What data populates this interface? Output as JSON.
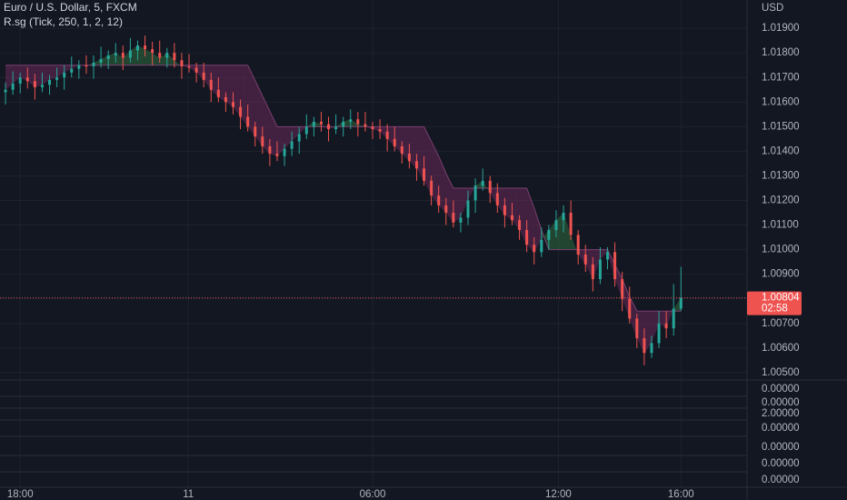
{
  "chart_data": {
    "type": "candlestick",
    "title": "Euro / U.S. Dollar, 5, FXCM",
    "indicator": "R.sg (Tick, 250, 1, 2, 12)",
    "currency": "USD",
    "countdown": "02:58",
    "last_price": {
      "value": 1.00804,
      "label": "1.00804"
    },
    "up_color": "#26a69a",
    "down_color": "#ef5350",
    "grid": true,
    "xlim": [
      -2.75,
      99
    ],
    "xticks": [
      {
        "value": 0,
        "label": "18:00"
      },
      {
        "value": 22.9,
        "label": "11"
      },
      {
        "value": 48,
        "label": "06:00"
      },
      {
        "value": 73.3,
        "label": "12:00"
      },
      {
        "value": 90,
        "label": "16:00"
      }
    ],
    "ylim": [
      1.0047,
      1.02015
    ],
    "yticks": [
      {
        "value": 1.005,
        "label": "1.00500"
      },
      {
        "value": 1.006,
        "label": "1.00600"
      },
      {
        "value": 1.007,
        "label": "1.00700"
      },
      {
        "value": 1.008,
        "label": "1.00800"
      },
      {
        "value": 1.009,
        "label": "1.00900"
      },
      {
        "value": 1.01,
        "label": "1.01000"
      },
      {
        "value": 1.011,
        "label": "1.01100"
      },
      {
        "value": 1.012,
        "label": "1.01200"
      },
      {
        "value": 1.013,
        "label": "1.01300"
      },
      {
        "value": 1.014,
        "label": "1.01400"
      },
      {
        "value": 1.015,
        "label": "1.01500"
      },
      {
        "value": 1.016,
        "label": "1.01600"
      },
      {
        "value": 1.017,
        "label": "1.01700"
      },
      {
        "value": 1.018,
        "label": "1.01800"
      },
      {
        "value": 1.019,
        "label": "1.01900"
      }
    ],
    "subpane_labels": [
      "0.00000",
      "0.00000",
      "2.00000",
      "0.00000",
      "0.00000",
      "0.00000",
      "0.00000"
    ],
    "x": [
      -2,
      -1,
      0,
      1,
      2,
      3,
      4,
      5,
      6,
      7,
      8,
      9,
      10,
      11,
      12,
      13,
      14,
      15,
      16,
      17,
      18,
      19,
      20,
      21,
      22,
      23,
      24,
      25,
      26,
      27,
      28,
      29,
      30,
      31,
      32,
      33,
      34,
      35,
      36,
      37,
      38,
      39,
      40,
      41,
      42,
      43,
      44,
      45,
      46,
      47,
      48,
      49,
      50,
      51,
      52,
      53,
      54,
      55,
      56,
      57,
      58,
      59,
      60,
      61,
      62,
      63,
      64,
      65,
      66,
      67,
      68,
      69,
      70,
      71,
      72,
      73,
      74,
      75,
      76,
      77,
      78,
      79,
      80,
      81,
      82,
      83,
      84,
      85,
      86,
      87,
      88,
      89,
      90
    ],
    "open": [
      1.0164,
      1.0165,
      1.01675,
      1.017,
      1.01685,
      1.0166,
      1.0167,
      1.0169,
      1.017,
      1.0172,
      1.01735,
      1.0175,
      1.01745,
      1.0176,
      1.01775,
      1.0179,
      1.018,
      1.0178,
      1.0181,
      1.0183,
      1.01815,
      1.018,
      1.0178,
      1.018,
      1.0177,
      1.01745,
      1.0174,
      1.0172,
      1.0169,
      1.0165,
      1.0162,
      1.016,
      1.0158,
      1.0154,
      1.015,
      1.0146,
      1.0142,
      1.0139,
      1.0138,
      1.0141,
      1.0144,
      1.0147,
      1.015,
      1.0152,
      1.0151,
      1.0149,
      1.015,
      1.0152,
      1.0153,
      1.0151,
      1.015,
      1.0149,
      1.0148,
      1.0145,
      1.0142,
      1.0139,
      1.0136,
      1.0133,
      1.0128,
      1.0122,
      1.0118,
      1.0115,
      1.0111,
      1.0113,
      1.012,
      1.0126,
      1.0128,
      1.0123,
      1.0118,
      1.0114,
      1.0112,
      1.0108,
      1.0102,
      1.0099,
      1.0104,
      1.0108,
      1.0112,
      1.0115,
      1.0106,
      1.0098,
      1.0094,
      1.0088,
      1.0096,
      1.0099,
      1.0088,
      1.008,
      1.0072,
      1.0064,
      1.0058,
      1.0062,
      1.007,
      1.0068,
      1.0076
    ],
    "high": [
      1.0168,
      1.01725,
      1.0172,
      1.0174,
      1.01715,
      1.0172,
      1.0171,
      1.0174,
      1.0175,
      1.01785,
      1.0177,
      1.0179,
      1.0179,
      1.01825,
      1.0181,
      1.0184,
      1.0183,
      1.0186,
      1.0185,
      1.0187,
      1.01845,
      1.0185,
      1.0182,
      1.0184,
      1.018,
      1.01795,
      1.0176,
      1.0176,
      1.0172,
      1.017,
      1.0164,
      1.0164,
      1.0161,
      1.0159,
      1.0152,
      1.015,
      1.0145,
      1.0144,
      1.0143,
      1.0148,
      1.015,
      1.0155,
      1.0154,
      1.0156,
      1.0154,
      1.0155,
      1.0154,
      1.0157,
      1.0156,
      1.0156,
      1.0152,
      1.0153,
      1.0151,
      1.015,
      1.0144,
      1.0143,
      1.0139,
      1.0138,
      1.013,
      1.0126,
      1.0121,
      1.012,
      1.0115,
      1.0124,
      1.0129,
      1.0133,
      1.013,
      1.0127,
      1.0121,
      1.0119,
      1.0114,
      1.0112,
      1.0105,
      1.0109,
      1.011,
      1.0116,
      1.0118,
      1.012,
      1.0108,
      1.0102,
      1.0097,
      1.0101,
      1.0101,
      1.0103,
      1.0091,
      1.0085,
      1.0074,
      1.0068,
      1.0065,
      1.0075,
      1.0075,
      1.0086,
      1.0093
    ],
    "low": [
      1.0159,
      1.0163,
      1.01635,
      1.01655,
      1.0161,
      1.0164,
      1.0163,
      1.0166,
      1.0165,
      1.017,
      1.01695,
      1.01715,
      1.01695,
      1.0174,
      1.01735,
      1.0176,
      1.0173,
      1.0176,
      1.0177,
      1.01785,
      1.0175,
      1.0176,
      1.0174,
      1.0174,
      1.01695,
      1.0172,
      1.0168,
      1.0166,
      1.016,
      1.016,
      1.0156,
      1.0155,
      1.0149,
      1.0148,
      1.0142,
      1.0139,
      1.0134,
      1.0136,
      1.0134,
      1.0138,
      1.0139,
      1.0145,
      1.0146,
      1.0148,
      1.0144,
      1.0147,
      1.0146,
      1.0149,
      1.0146,
      1.0148,
      1.0145,
      1.0145,
      1.014,
      1.014,
      1.0135,
      1.0133,
      1.0128,
      1.0126,
      1.0118,
      1.0115,
      1.011,
      1.0109,
      1.0107,
      1.011,
      1.0115,
      1.0124,
      1.0119,
      1.0115,
      1.0109,
      1.011,
      1.0104,
      1.0099,
      1.0094,
      1.0097,
      1.01,
      1.0105,
      1.0107,
      1.0104,
      1.0094,
      1.0091,
      1.0083,
      1.0086,
      1.0092,
      1.0085,
      1.0075,
      1.007,
      1.006,
      1.0053,
      1.0056,
      1.006,
      1.0064,
      1.0065,
      1.0075
    ],
    "close": [
      1.0165,
      1.01675,
      1.017,
      1.01685,
      1.0166,
      1.0167,
      1.0169,
      1.017,
      1.0172,
      1.01735,
      1.0175,
      1.01745,
      1.0176,
      1.01775,
      1.0179,
      1.018,
      1.0178,
      1.0181,
      1.0183,
      1.01815,
      1.018,
      1.0178,
      1.018,
      1.0177,
      1.01745,
      1.0174,
      1.0172,
      1.0169,
      1.0165,
      1.0162,
      1.016,
      1.0158,
      1.0154,
      1.015,
      1.0146,
      1.0142,
      1.0139,
      1.0138,
      1.0141,
      1.0144,
      1.0147,
      1.015,
      1.0152,
      1.0151,
      1.0149,
      1.015,
      1.0152,
      1.0153,
      1.0151,
      1.015,
      1.0149,
      1.0148,
      1.0145,
      1.0142,
      1.0139,
      1.0136,
      1.0133,
      1.0128,
      1.0122,
      1.0118,
      1.0115,
      1.0111,
      1.0113,
      1.012,
      1.0126,
      1.0128,
      1.0123,
      1.0118,
      1.0114,
      1.0112,
      1.0108,
      1.0102,
      1.0099,
      1.0104,
      1.0108,
      1.0112,
      1.0115,
      1.0106,
      1.0098,
      1.0094,
      1.0088,
      1.0096,
      1.0099,
      1.0088,
      1.008,
      1.0072,
      1.0064,
      1.0058,
      1.0062,
      1.007,
      1.0068,
      1.0076,
      1.00804
    ],
    "band": [
      1.0175,
      1.0175,
      1.0175,
      1.0175,
      1.0175,
      1.0175,
      1.0175,
      1.0175,
      1.0175,
      1.0175,
      1.0175,
      1.0175,
      1.0175,
      1.0175,
      1.0175,
      1.0175,
      1.0175,
      1.0175,
      1.0175,
      1.0175,
      1.0175,
      1.0175,
      1.0175,
      1.0175,
      1.0175,
      1.0175,
      1.0175,
      1.0175,
      1.0175,
      1.0175,
      1.0175,
      1.0175,
      1.0175,
      1.0175,
      1.01688,
      1.01625,
      1.01563,
      1.015,
      1.015,
      1.015,
      1.015,
      1.015,
      1.015,
      1.015,
      1.015,
      1.015,
      1.015,
      1.015,
      1.015,
      1.015,
      1.015,
      1.015,
      1.015,
      1.015,
      1.015,
      1.015,
      1.015,
      1.015,
      1.0144,
      1.0138,
      1.0131,
      1.0125,
      1.0125,
      1.0125,
      1.0125,
      1.0125,
      1.0125,
      1.0125,
      1.0125,
      1.0125,
      1.0125,
      1.0125,
      1.0117,
      1.0108,
      1.01,
      1.01,
      1.01,
      1.01,
      1.01,
      1.01,
      1.01,
      1.01,
      1.01,
      1.0094,
      1.0088,
      1.0081,
      1.0075,
      1.0075,
      1.0075,
      1.0075,
      1.0075,
      1.0075,
      1.0075
    ],
    "band_color": "#6a2a5a",
    "band_up_color": "#2e6b3e"
  }
}
